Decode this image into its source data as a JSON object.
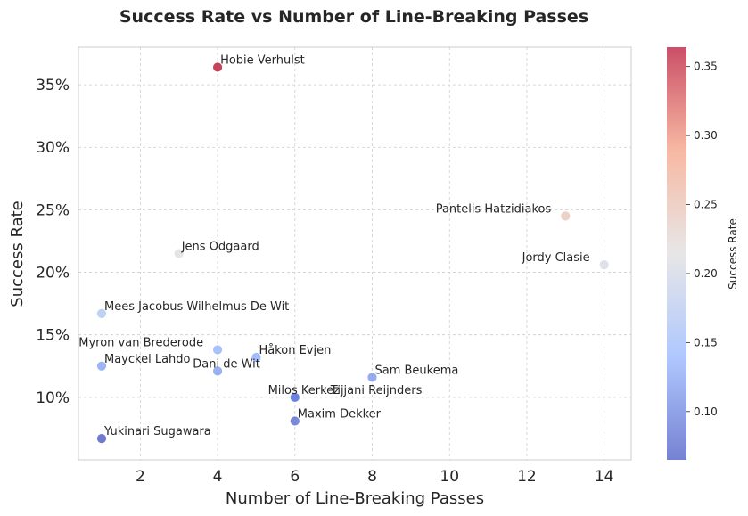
{
  "chart_data": {
    "type": "scatter",
    "title": "Success Rate vs Number of Line-Breaking Passes",
    "xlabel": "Number of Line-Breaking Passes",
    "ylabel": "Success Rate",
    "xlim": [
      0.4,
      14.7
    ],
    "ylim": [
      0.05,
      0.38
    ],
    "xticks": [
      2,
      4,
      6,
      8,
      10,
      12,
      14
    ],
    "yticks": [
      0.1,
      0.15,
      0.2,
      0.25,
      0.3,
      0.35
    ],
    "ytick_labels": [
      "10%",
      "15%",
      "20%",
      "25%",
      "30%",
      "35%"
    ],
    "grid": true,
    "colormap": "coolwarm",
    "colorbar": {
      "label": "Success Rate",
      "range": [
        0.065,
        0.364
      ],
      "ticks": [
        0.1,
        0.15,
        0.2,
        0.25,
        0.3,
        0.35
      ],
      "tick_labels": [
        "0.10",
        "0.15",
        "0.20",
        "0.25",
        "0.30",
        "0.35"
      ]
    },
    "points": [
      {
        "name": "Hobie Verhulst",
        "x": 4,
        "y": 0.364,
        "label_side": "right"
      },
      {
        "name": "Pantelis Hatzidiakos",
        "x": 13,
        "y": 0.245,
        "label_side": "left"
      },
      {
        "name": "Jens Odgaard",
        "x": 3,
        "y": 0.215,
        "label_side": "right"
      },
      {
        "name": "Jordy Clasie",
        "x": 14,
        "y": 0.206,
        "label_side": "left"
      },
      {
        "name": "Mees Jacobus Wilhelmus De Wit",
        "x": 1,
        "y": 0.167,
        "label_side": "right"
      },
      {
        "name": "Myron van Brederode",
        "x": 4,
        "y": 0.138,
        "label_side": "left"
      },
      {
        "name": "Håkon Evjen",
        "x": 5,
        "y": 0.132,
        "label_side": "right"
      },
      {
        "name": "Mayckel Lahdo",
        "x": 1,
        "y": 0.125,
        "label_side": "right"
      },
      {
        "name": "Dani de Wit",
        "x": 4,
        "y": 0.121,
        "label_side": "center"
      },
      {
        "name": "Sam Beukema",
        "x": 8,
        "y": 0.116,
        "label_side": "right"
      },
      {
        "name": "Milos Kerkez",
        "x": 6,
        "y": 0.1,
        "label_side": "center"
      },
      {
        "name": "Tijjani Reijnders",
        "x": 6,
        "y": 0.1,
        "label_side": "far-right"
      },
      {
        "name": "Maxim Dekker",
        "x": 6,
        "y": 0.081,
        "label_side": "right"
      },
      {
        "name": "Yukinari Sugawara",
        "x": 1,
        "y": 0.067,
        "label_side": "right"
      }
    ]
  }
}
